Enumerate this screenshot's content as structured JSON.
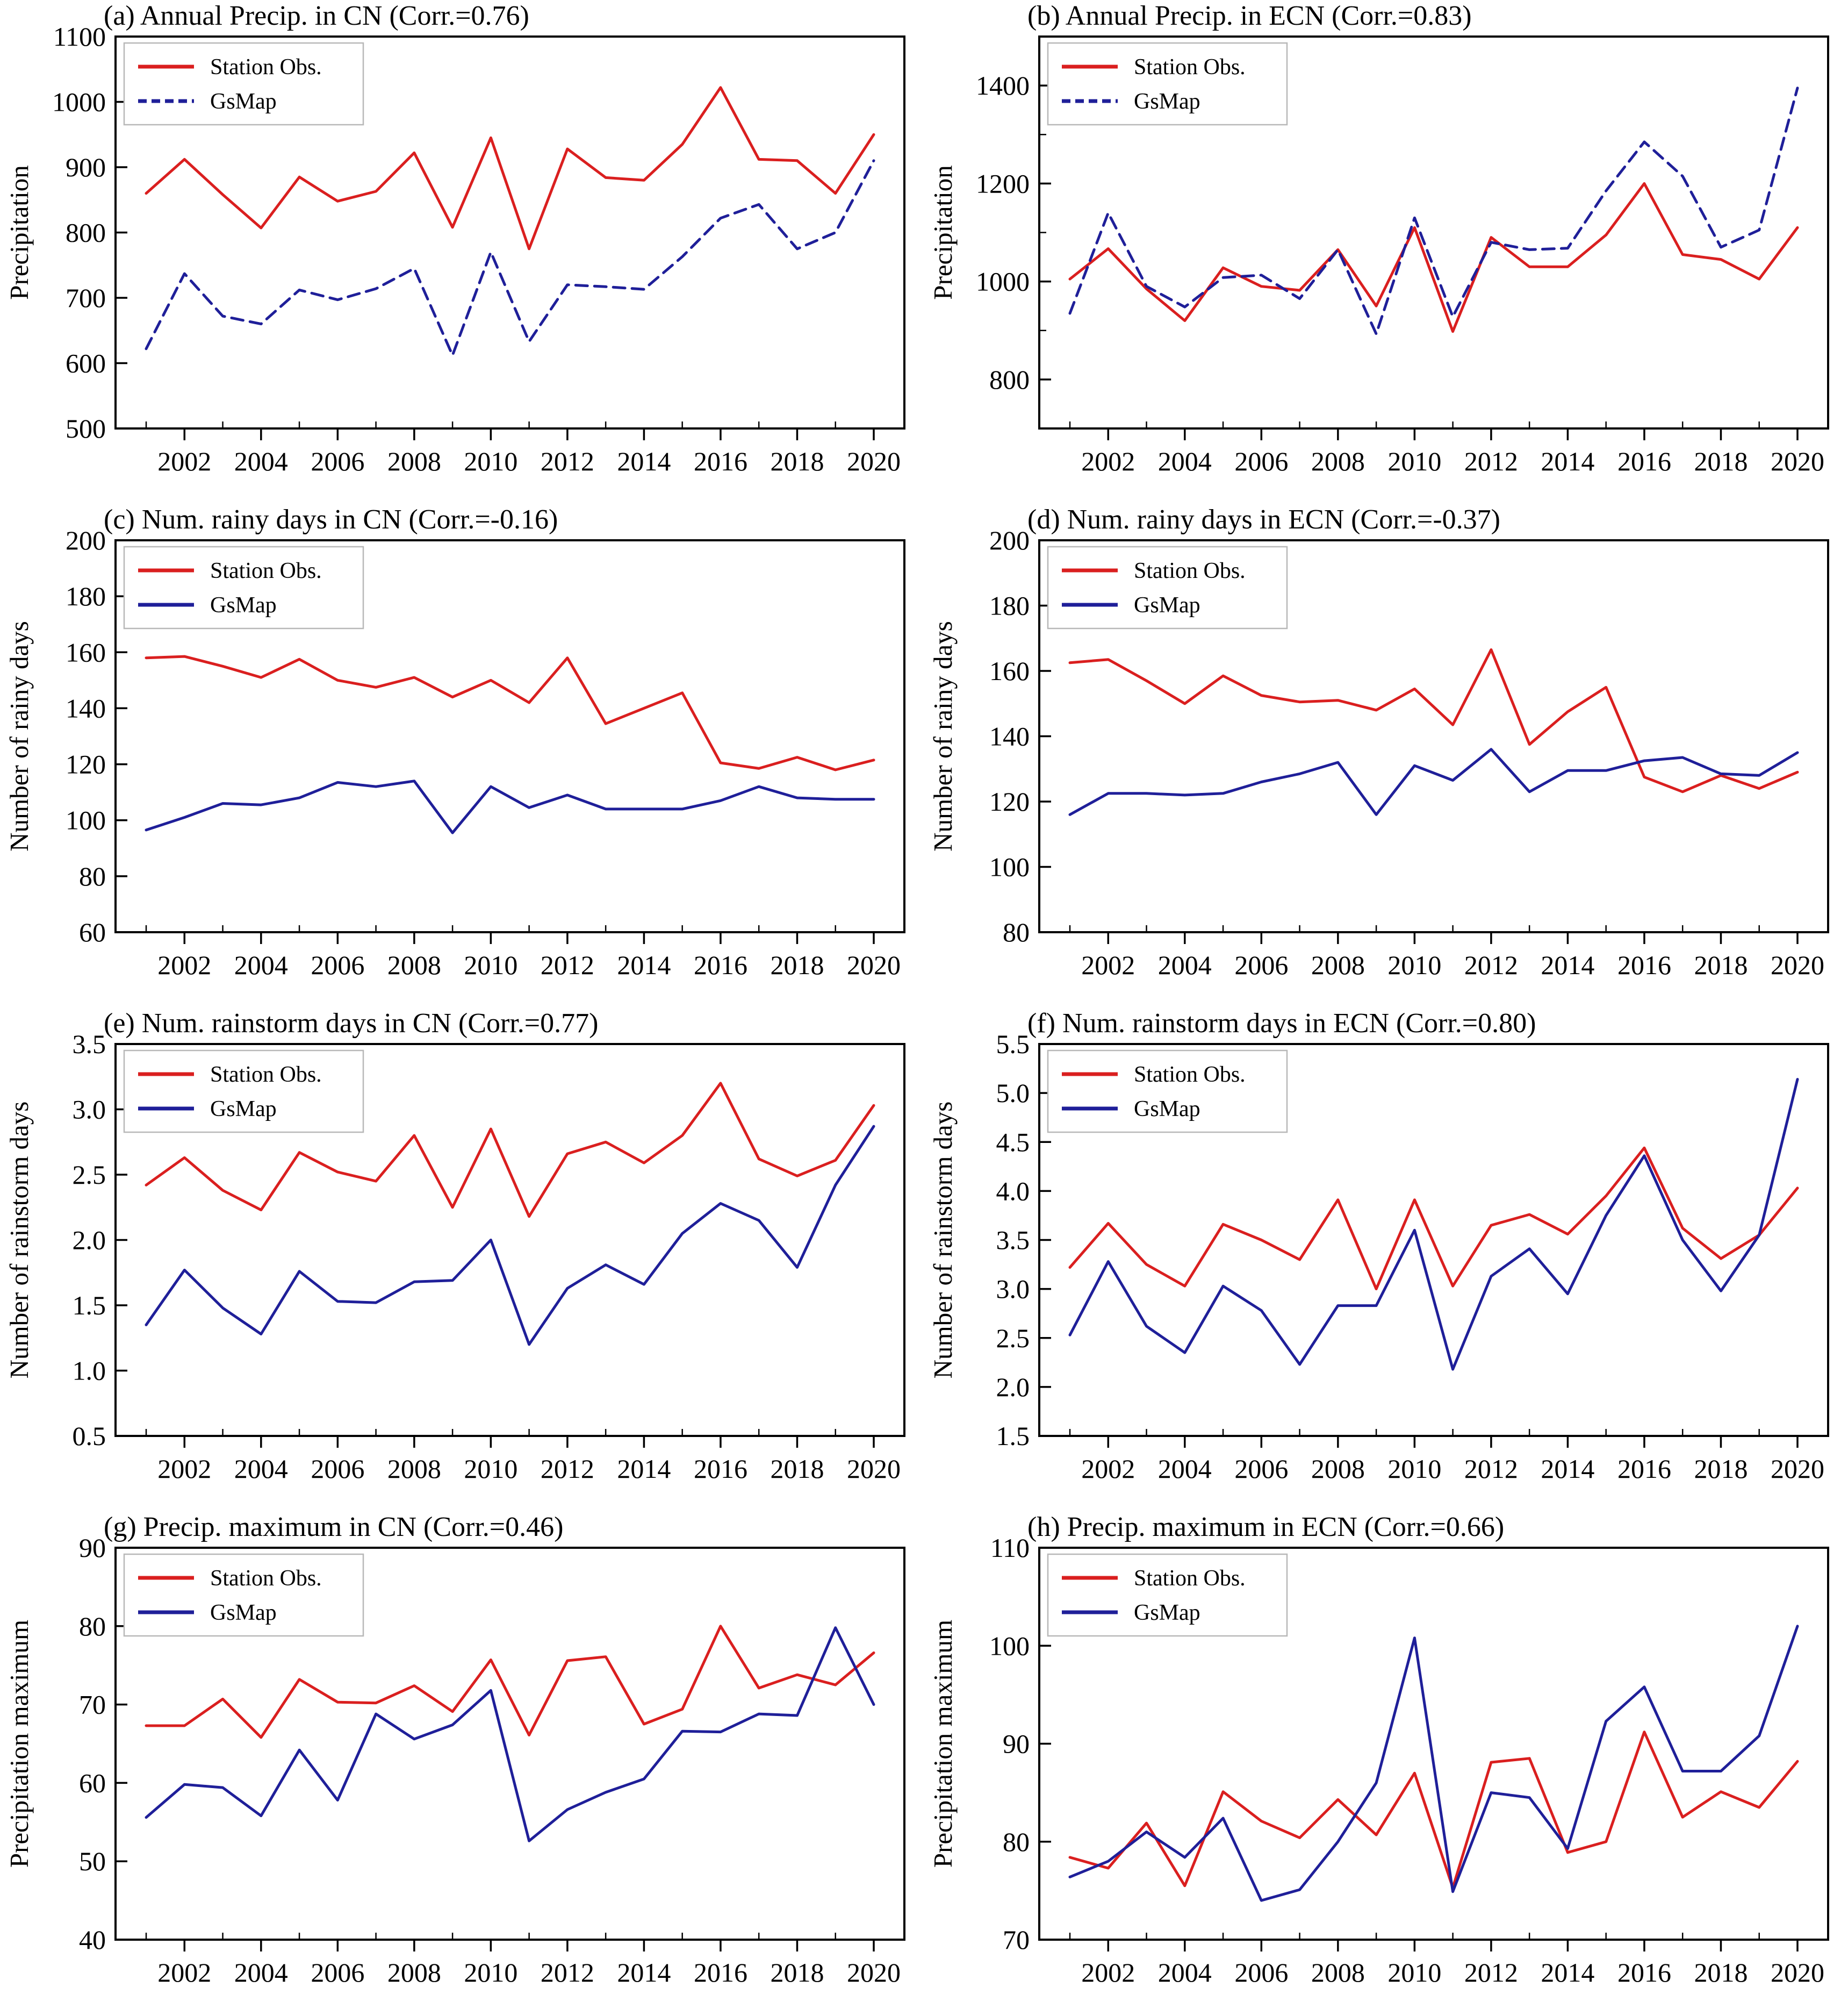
{
  "figure": {
    "background": "#ffffff",
    "legend_labels": {
      "station": "Station Obs.",
      "gsmap": "GsMap"
    },
    "colors": {
      "station_red": "#da1f1f",
      "gsmap_navy": "#1f1f99",
      "axis_black": "#000000"
    },
    "x_years": [
      2001,
      2002,
      2003,
      2004,
      2005,
      2006,
      2007,
      2008,
      2009,
      2010,
      2011,
      2012,
      2013,
      2014,
      2015,
      2016,
      2017,
      2018,
      2019,
      2020
    ],
    "x_tick_labels": [
      "2002",
      "2004",
      "2006",
      "2008",
      "2010",
      "2012",
      "2014",
      "2016",
      "2018",
      "2020"
    ],
    "x_tick_years": [
      2002,
      2004,
      2006,
      2008,
      2010,
      2012,
      2014,
      2016,
      2018,
      2020
    ],
    "x_minor_years": [
      2001,
      2003,
      2005,
      2007,
      2009,
      2011,
      2013,
      2015,
      2017,
      2019
    ],
    "xlim": [
      2000.2,
      2020.8
    ]
  },
  "chart_data": [
    {
      "id": "a",
      "type": "line",
      "title": "(a) Annual Precip. in CN (Corr.=0.76)",
      "ylabel": "Precipitation",
      "ylim": [
        500,
        1100
      ],
      "yticks": [
        500,
        600,
        700,
        800,
        900,
        1000,
        1100
      ],
      "yminor": [],
      "tick_decimals": 0,
      "grid": false,
      "legend_position": "top-left",
      "series": [
        {
          "name": "Station Obs.",
          "color": "#da1f1f",
          "dash": "",
          "values": [
            860,
            912,
            858,
            807,
            885,
            848,
            863,
            922,
            808,
            945,
            775,
            928,
            884,
            880,
            935,
            1022,
            912,
            910,
            860,
            950
          ]
        },
        {
          "name": "GsMap",
          "color": "#1f1f99",
          "dash": "22 13",
          "values": [
            622,
            737,
            672,
            660,
            712,
            697,
            714,
            745,
            612,
            770,
            633,
            720,
            717,
            713,
            763,
            822,
            843,
            775,
            800,
            910
          ]
        }
      ]
    },
    {
      "id": "b",
      "type": "line",
      "title": "(b) Annual Precip. in ECN (Corr.=0.83)",
      "ylabel": "Precipitation",
      "ylim": [
        700,
        1500
      ],
      "yticks": [
        800,
        1000,
        1200,
        1400
      ],
      "yminor": [
        900,
        1100,
        1300
      ],
      "tick_decimals": 0,
      "grid": false,
      "legend_position": "top-left",
      "series": [
        {
          "name": "Station Obs.",
          "color": "#da1f1f",
          "dash": "",
          "values": [
            1005,
            1067,
            985,
            920,
            1028,
            990,
            982,
            1065,
            950,
            1110,
            898,
            1090,
            1030,
            1030,
            1095,
            1200,
            1055,
            1045,
            1005,
            1110
          ]
        },
        {
          "name": "GsMap",
          "color": "#1f1f99",
          "dash": "22 13",
          "values": [
            935,
            1140,
            990,
            948,
            1008,
            1013,
            965,
            1065,
            893,
            1130,
            928,
            1080,
            1065,
            1068,
            1185,
            1285,
            1215,
            1070,
            1105,
            1395
          ]
        }
      ]
    },
    {
      "id": "c",
      "type": "line",
      "title": "(c) Num. rainy days in CN (Corr.=-0.16)",
      "ylabel": "Number of rainy days",
      "ylim": [
        60,
        200
      ],
      "yticks": [
        60,
        80,
        100,
        120,
        140,
        160,
        180,
        200
      ],
      "yminor": [],
      "tick_decimals": 0,
      "grid": false,
      "legend_position": "top-left",
      "series": [
        {
          "name": "Station Obs.",
          "color": "#da1f1f",
          "dash": "",
          "values": [
            158,
            158.5,
            155,
            151,
            157.5,
            150,
            147.5,
            151,
            144,
            150,
            142,
            158,
            134.5,
            140,
            145.5,
            120.5,
            118.5,
            122.5,
            118,
            121.5
          ]
        },
        {
          "name": "GsMap",
          "color": "#1f1f99",
          "dash": "",
          "values": [
            96.5,
            101,
            106,
            105.5,
            108,
            113.5,
            112,
            114,
            95.5,
            112,
            104.5,
            109,
            104,
            104,
            104,
            107,
            112,
            108,
            107.5,
            107.5
          ]
        }
      ]
    },
    {
      "id": "d",
      "type": "line",
      "title": "(d) Num. rainy days in ECN (Corr.=-0.37)",
      "ylabel": "Number of rainy days",
      "ylim": [
        80,
        200
      ],
      "yticks": [
        80,
        100,
        120,
        140,
        160,
        180,
        200
      ],
      "yminor": [],
      "tick_decimals": 0,
      "grid": false,
      "legend_position": "top-left",
      "series": [
        {
          "name": "Station Obs.",
          "color": "#da1f1f",
          "dash": "",
          "values": [
            162.5,
            163.5,
            157,
            150,
            158.5,
            152.5,
            150.5,
            151,
            148,
            154.5,
            143.5,
            166.5,
            137.5,
            147.5,
            155,
            127.5,
            123,
            128,
            124,
            129
          ]
        },
        {
          "name": "GsMap",
          "color": "#1f1f99",
          "dash": "",
          "values": [
            116,
            122.5,
            122.5,
            122,
            122.5,
            126,
            128.5,
            132,
            116,
            131,
            126.5,
            136,
            123,
            129.5,
            129.5,
            132.5,
            133.5,
            128.5,
            128,
            135
          ]
        }
      ]
    },
    {
      "id": "e",
      "type": "line",
      "title": "(e) Num. rainstorm days in CN (Corr.=0.77)",
      "ylabel": "Number of rainstorm days",
      "ylim": [
        0.5,
        3.5
      ],
      "yticks": [
        0.5,
        1.0,
        1.5,
        2.0,
        2.5,
        3.0,
        3.5
      ],
      "yminor": [],
      "tick_decimals": 1,
      "grid": false,
      "legend_position": "top-left",
      "series": [
        {
          "name": "Station Obs.",
          "color": "#da1f1f",
          "dash": "",
          "values": [
            2.42,
            2.63,
            2.38,
            2.23,
            2.67,
            2.52,
            2.45,
            2.8,
            2.25,
            2.85,
            2.18,
            2.66,
            2.75,
            2.59,
            2.8,
            3.2,
            2.62,
            2.49,
            2.61,
            3.03
          ]
        },
        {
          "name": "GsMap",
          "color": "#1f1f99",
          "dash": "",
          "values": [
            1.35,
            1.77,
            1.48,
            1.28,
            1.76,
            1.53,
            1.52,
            1.68,
            1.69,
            2.0,
            1.2,
            1.63,
            1.81,
            1.66,
            2.05,
            2.28,
            2.15,
            1.79,
            2.42,
            2.87
          ]
        }
      ]
    },
    {
      "id": "f",
      "type": "line",
      "title": "(f) Num. rainstorm days in ECN (Corr.=0.80)",
      "ylabel": "Number of rainstorm days",
      "ylim": [
        1.5,
        5.5
      ],
      "yticks": [
        1.5,
        2.0,
        2.5,
        3.0,
        3.5,
        4.0,
        4.5,
        5.0,
        5.5
      ],
      "yminor": [],
      "tick_decimals": 1,
      "grid": false,
      "legend_position": "top-left",
      "series": [
        {
          "name": "Station Obs.",
          "color": "#da1f1f",
          "dash": "",
          "values": [
            3.22,
            3.67,
            3.25,
            3.03,
            3.66,
            3.5,
            3.3,
            3.91,
            3.0,
            3.91,
            3.03,
            3.65,
            3.76,
            3.56,
            3.95,
            4.44,
            3.62,
            3.31,
            3.55,
            4.03
          ]
        },
        {
          "name": "GsMap",
          "color": "#1f1f99",
          "dash": "",
          "values": [
            2.53,
            3.28,
            2.62,
            2.35,
            3.03,
            2.78,
            2.23,
            2.83,
            2.83,
            3.6,
            2.18,
            3.13,
            3.41,
            2.95,
            3.75,
            4.36,
            3.5,
            2.98,
            3.55,
            5.14
          ]
        }
      ]
    },
    {
      "id": "g",
      "type": "line",
      "title": "(g) Precip. maximum in CN (Corr.=0.46)",
      "ylabel": "Precipitation maximum",
      "ylim": [
        40,
        90
      ],
      "yticks": [
        40,
        50,
        60,
        70,
        80,
        90
      ],
      "yminor": [],
      "tick_decimals": 0,
      "grid": false,
      "legend_position": "top-left",
      "series": [
        {
          "name": "Station Obs.",
          "color": "#da1f1f",
          "dash": "",
          "values": [
            67.3,
            67.3,
            70.7,
            65.8,
            73.2,
            70.3,
            70.2,
            72.4,
            69.1,
            75.7,
            66.1,
            75.6,
            76.1,
            67.5,
            69.4,
            80.0,
            72.1,
            73.8,
            72.5,
            76.6
          ]
        },
        {
          "name": "GsMap",
          "color": "#1f1f99",
          "dash": "",
          "values": [
            55.6,
            59.8,
            59.4,
            55.8,
            64.2,
            57.8,
            68.8,
            65.6,
            67.4,
            71.8,
            52.6,
            56.6,
            58.8,
            60.5,
            66.6,
            66.5,
            68.8,
            68.6,
            79.8,
            70.0
          ]
        }
      ]
    },
    {
      "id": "h",
      "type": "line",
      "title": "(h) Precip. maximum in ECN (Corr.=0.66)",
      "ylabel": "Precipitation maximum",
      "ylim": [
        70,
        110
      ],
      "yticks": [
        70,
        80,
        90,
        100,
        110
      ],
      "yminor": [],
      "tick_decimals": 0,
      "grid": false,
      "legend_position": "top-left",
      "series": [
        {
          "name": "Station Obs.",
          "color": "#da1f1f",
          "dash": "",
          "values": [
            78.4,
            77.3,
            81.9,
            75.5,
            85.1,
            82.1,
            80.4,
            84.3,
            80.7,
            87.0,
            75.3,
            88.1,
            88.5,
            78.9,
            80.0,
            91.2,
            82.5,
            85.1,
            83.5,
            88.2
          ]
        },
        {
          "name": "GsMap",
          "color": "#1f1f99",
          "dash": "",
          "values": [
            76.4,
            78.0,
            81.0,
            78.4,
            82.4,
            74.0,
            75.1,
            80.0,
            86.0,
            100.8,
            74.9,
            85.0,
            84.5,
            79.3,
            92.3,
            95.8,
            87.2,
            87.2,
            90.8,
            102.0
          ]
        }
      ]
    }
  ]
}
